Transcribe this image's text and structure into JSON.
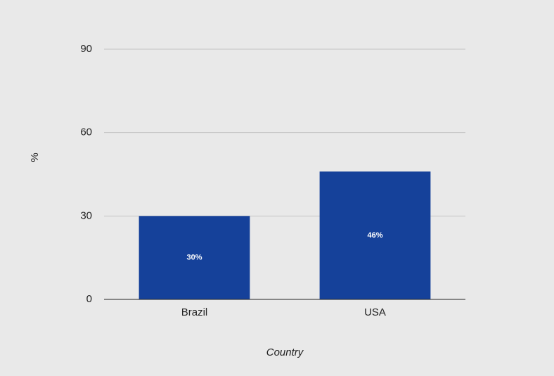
{
  "chart_data": {
    "type": "bar",
    "x_label": "Country",
    "y_label": "%",
    "categories": [
      "Brazil",
      "USA"
    ],
    "values": [
      30,
      46
    ],
    "value_labels": [
      "30%",
      "46%"
    ],
    "color": "#15419a",
    "ylim": [
      0,
      90
    ],
    "yticks": [
      0,
      30,
      60,
      90
    ],
    "grid": true
  }
}
